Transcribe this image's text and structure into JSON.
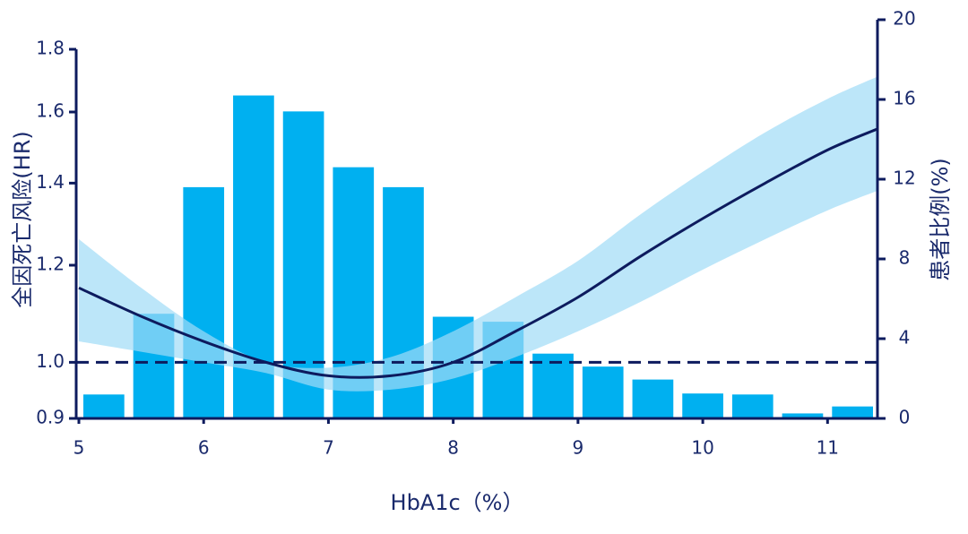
{
  "chart_data": {
    "type": "histogram",
    "xlabel": "HbA1c（%）",
    "ylabel": "全因死亡风险(HR)",
    "y2label": "患者比例(%)",
    "xlim": [
      5,
      11.4
    ],
    "xticks": [
      5,
      6,
      7,
      8,
      9,
      10,
      11
    ],
    "ylim": [
      0.9,
      1.8
    ],
    "yscale": "log",
    "yticks": [
      0.9,
      {
        "value": 1,
        "label": "1.0"
      },
      1.2,
      1.4,
      1.6,
      1.8
    ],
    "y2lim": [
      0,
      20
    ],
    "y2ticks": [
      0,
      4,
      8,
      12,
      16,
      20
    ],
    "bins": [
      5.0,
      5.4,
      5.8,
      6.2,
      6.6,
      7.0,
      7.4,
      7.8,
      8.2,
      8.6,
      9.0,
      9.4,
      9.8,
      10.2,
      10.6,
      11.0,
      11.4
    ],
    "series": [
      {
        "axis": "y2",
        "color": "#00b0f0",
        "values": [
          1.2,
          5.25,
          11.6,
          16.2,
          15.4,
          12.6,
          11.6,
          5.1,
          4.85,
          3.25,
          2.6,
          1.95,
          1.25,
          1.2,
          0.25,
          0.6
        ]
      }
    ],
    "curve": {
      "color": "#0d1b5e",
      "band_color": "#9fdcf7",
      "x": [
        5,
        5.5,
        6,
        6.5,
        7,
        7.5,
        8,
        8.5,
        9,
        9.5,
        10,
        10.5,
        11,
        11.4
      ],
      "values": [
        1.15,
        1.09,
        1.04,
        1.0,
        0.975,
        0.975,
        1.0,
        1.06,
        1.13,
        1.22,
        1.31,
        1.4,
        1.49,
        1.55
      ],
      "upper": [
        1.26,
        1.15,
        1.06,
        1.0,
        0.99,
        1.01,
        1.06,
        1.13,
        1.21,
        1.32,
        1.43,
        1.54,
        1.64,
        1.71
      ],
      "lower": [
        1.04,
        1.02,
        1.0,
        0.98,
        0.95,
        0.95,
        0.97,
        1.01,
        1.06,
        1.12,
        1.19,
        1.26,
        1.33,
        1.38
      ]
    },
    "hline": 1
  }
}
